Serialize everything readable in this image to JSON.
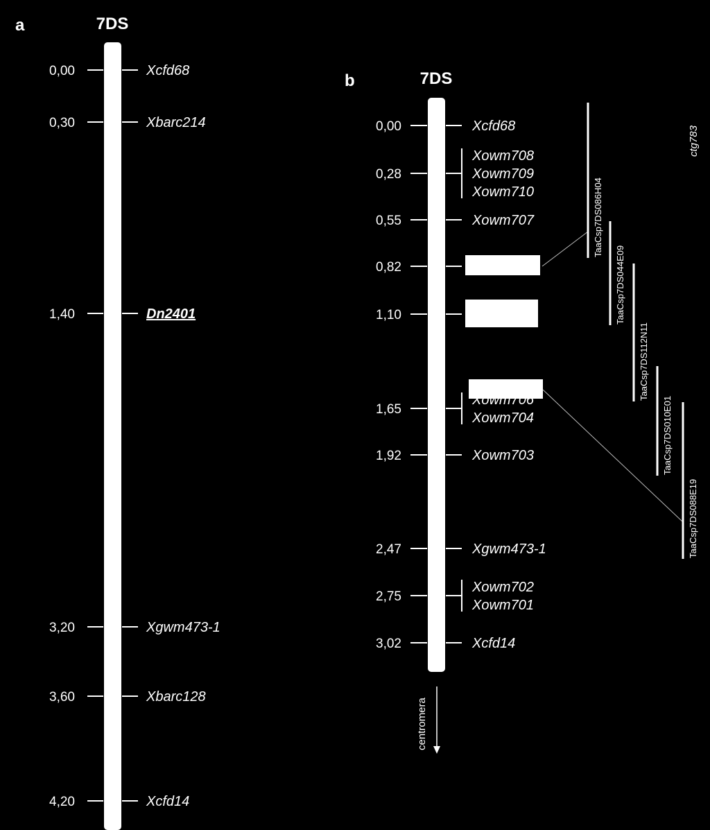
{
  "panel_a": {
    "letter": "a",
    "chromosome": "7DS",
    "markers": [
      {
        "pos": "0,00",
        "name": "Xcfd68"
      },
      {
        "pos": "0,30",
        "name": "Xbarc214"
      },
      {
        "pos": "1,40",
        "name": "Dn2401",
        "gene": true
      },
      {
        "pos": "3,20",
        "name": "Xgwm473-1"
      },
      {
        "pos": "3,60",
        "name": "Xbarc128"
      },
      {
        "pos": "4,20",
        "name": "Xcfd14"
      }
    ]
  },
  "panel_b": {
    "letter": "b",
    "chromosome": "7DS",
    "markers": [
      {
        "pos": "0,00",
        "names": [
          "Xcfd68"
        ]
      },
      {
        "pos": "0,28",
        "names": [
          "Xowm708",
          "Xowm709",
          "Xowm710"
        ]
      },
      {
        "pos": "0,55",
        "names": [
          "Xowm707"
        ]
      },
      {
        "pos": "0,82",
        "names": []
      },
      {
        "pos": "1,10",
        "names": []
      },
      {
        "pos": "1,65",
        "names": [
          "Xowm706",
          "Xowm704"
        ]
      },
      {
        "pos": "1,92",
        "names": [
          "Xowm703"
        ]
      },
      {
        "pos": "2,47",
        "names": [
          "Xgwm473-1"
        ]
      },
      {
        "pos": "2,75",
        "names": [
          "Xowm702",
          "Xowm701"
        ]
      },
      {
        "pos": "3,02",
        "names": [
          "Xcfd14"
        ]
      }
    ],
    "contig": "ctg783",
    "bac_clones": [
      "TaaCsp7DS086H04",
      "TaaCsp7DS044E09",
      "TaaCsp7DS112N11",
      "TaaCsp7DS010E01",
      "TaaCsp7DS088E19"
    ],
    "centromere_label": "centromera"
  }
}
